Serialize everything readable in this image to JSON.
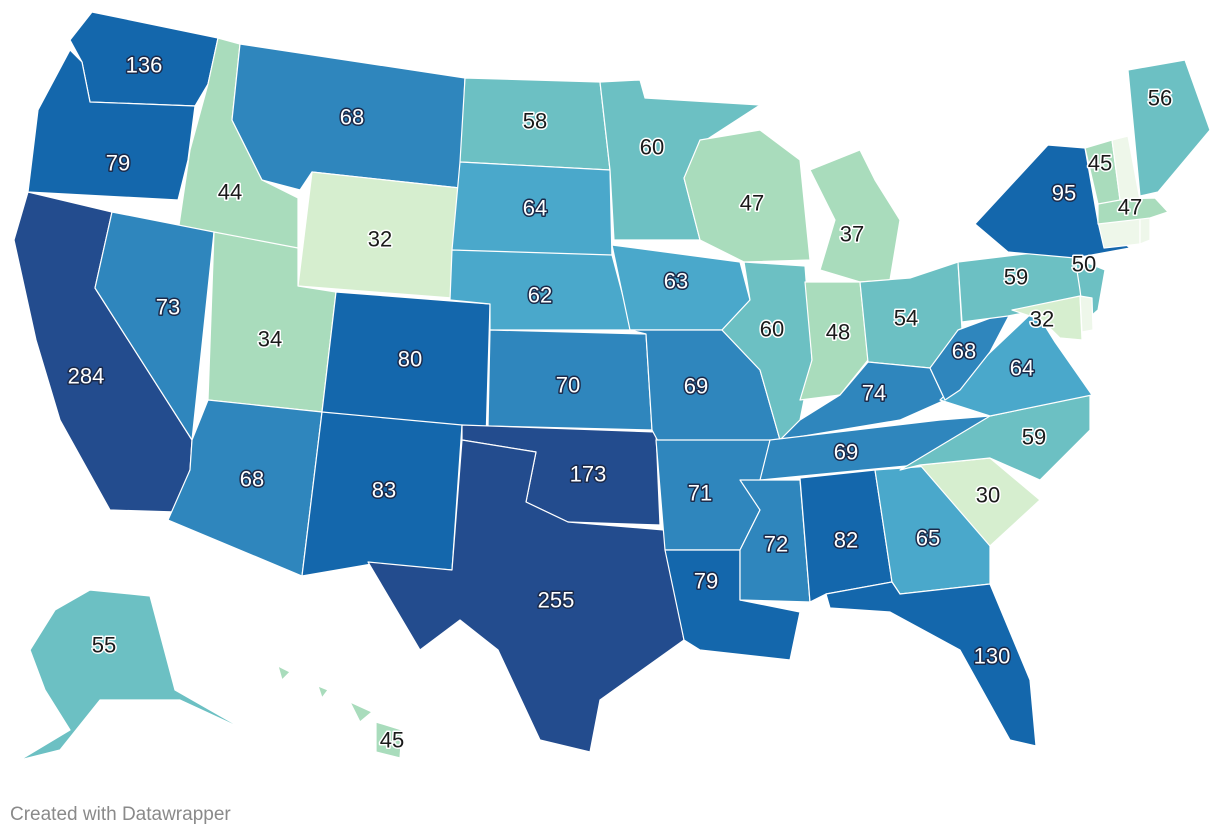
{
  "map": {
    "type": "choropleth",
    "region": "United States",
    "labels_shown_on_map": true,
    "color_scale": [
      "#d6eecf",
      "#a9dcbc",
      "#6cc0c3",
      "#4aa8cb",
      "#2f86bd",
      "#1467ac",
      "#234c8e"
    ],
    "states": [
      {
        "abbr": "WA",
        "value": 136
      },
      {
        "abbr": "OR",
        "value": 79
      },
      {
        "abbr": "CA",
        "value": 284
      },
      {
        "abbr": "ID",
        "value": 44
      },
      {
        "abbr": "NV",
        "value": 73
      },
      {
        "abbr": "MT",
        "value": 68
      },
      {
        "abbr": "WY",
        "value": 32
      },
      {
        "abbr": "UT",
        "value": 34
      },
      {
        "abbr": "AZ",
        "value": 68
      },
      {
        "abbr": "CO",
        "value": 80
      },
      {
        "abbr": "NM",
        "value": 83
      },
      {
        "abbr": "ND",
        "value": 58
      },
      {
        "abbr": "SD",
        "value": 64
      },
      {
        "abbr": "NE",
        "value": 62
      },
      {
        "abbr": "KS",
        "value": 70
      },
      {
        "abbr": "OK",
        "value": 173
      },
      {
        "abbr": "TX",
        "value": 255
      },
      {
        "abbr": "MN",
        "value": 60
      },
      {
        "abbr": "IA",
        "value": 63
      },
      {
        "abbr": "MO",
        "value": 69
      },
      {
        "abbr": "AR",
        "value": 71
      },
      {
        "abbr": "LA",
        "value": 79
      },
      {
        "abbr": "WI",
        "value": 47
      },
      {
        "abbr": "IL",
        "value": 60
      },
      {
        "abbr": "MI",
        "value": 37
      },
      {
        "abbr": "IN",
        "value": 48
      },
      {
        "abbr": "OH",
        "value": 54
      },
      {
        "abbr": "KY",
        "value": 74
      },
      {
        "abbr": "TN",
        "value": 69
      },
      {
        "abbr": "MS",
        "value": 72
      },
      {
        "abbr": "AL",
        "value": 82
      },
      {
        "abbr": "GA",
        "value": 65
      },
      {
        "abbr": "FL",
        "value": 130
      },
      {
        "abbr": "SC",
        "value": 30
      },
      {
        "abbr": "NC",
        "value": 59
      },
      {
        "abbr": "VA",
        "value": 64
      },
      {
        "abbr": "WV",
        "value": 68
      },
      {
        "abbr": "PA",
        "value": 59
      },
      {
        "abbr": "NY",
        "value": 95
      },
      {
        "abbr": "NJ",
        "value": 50
      },
      {
        "abbr": "MD",
        "value": 32
      },
      {
        "abbr": "DE",
        "value": null
      },
      {
        "abbr": "CT",
        "value": null
      },
      {
        "abbr": "RI",
        "value": null
      },
      {
        "abbr": "MA",
        "value": 47
      },
      {
        "abbr": "VT",
        "value": 45
      },
      {
        "abbr": "NH",
        "value": null
      },
      {
        "abbr": "ME",
        "value": 56
      },
      {
        "abbr": "AK",
        "value": 55
      },
      {
        "abbr": "HI",
        "value": 45
      }
    ]
  },
  "footer": {
    "credit": "Created with Datawrapper"
  }
}
